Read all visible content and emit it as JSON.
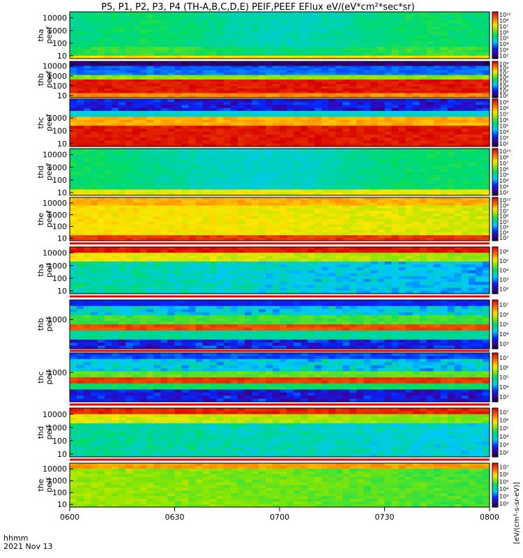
{
  "title": "P5, P1, P2, P3, P4 (TH-A,B,C,D,E) PEIF,PEEF EFlux eV/(eV*cm²*sec*sr)",
  "xaxis": {
    "labels": [
      "0600",
      "0630",
      "0700",
      "0730",
      "0800"
    ],
    "caption_line1": "hhmm",
    "caption_line2": "2021 Nov 13"
  },
  "colorbar_label": "[eV/(cm²-s-sr-eV)]",
  "chart_data": [
    {
      "type": "heatmap",
      "probe": "tha",
      "species": "peef",
      "ylabel": [
        "tha",
        "peef"
      ],
      "yscale": "log",
      "ytick_labels": [
        "10",
        "100",
        "1000",
        "10000"
      ],
      "colorbar_ticks": [
        "10²",
        "10³",
        "10⁴",
        "10⁵",
        "10⁶",
        "10⁷",
        "10⁸",
        "10¹⁰"
      ],
      "pattern": "uniform green-cyan, yellow strip at lowest energy"
    },
    {
      "type": "heatmap",
      "probe": "thb",
      "species": "peef",
      "ylabel": [
        "thb",
        "peef"
      ],
      "yscale": "log",
      "ytick_labels": [
        "10",
        "100",
        "1000",
        "10000"
      ],
      "colorbar_ticks": [
        "10²",
        "10³",
        "10⁴",
        "10⁵",
        "10⁶",
        "10⁷",
        "10⁸",
        "10⁹"
      ],
      "pattern": "red band at low energy, blue-black at high energy"
    },
    {
      "type": "heatmap",
      "probe": "thc",
      "species": "peef",
      "ylabel": [
        "thc",
        "peef"
      ],
      "yscale": "log",
      "ytick_labels": [
        "10",
        "100",
        "1000"
      ],
      "colorbar_ticks": [
        "10²",
        "10³",
        "10⁴",
        "10⁵",
        "10⁶",
        "10⁷",
        "10⁸",
        "10⁹"
      ],
      "pattern": "red band at low energy, blue-black at high energy"
    },
    {
      "type": "heatmap",
      "probe": "thd",
      "species": "peef",
      "ylabel": [
        "thd",
        "peef"
      ],
      "yscale": "log",
      "ytick_labels": [
        "10",
        "100",
        "1000",
        "10000"
      ],
      "colorbar_ticks": [
        "10²",
        "10³",
        "10⁴",
        "10⁵",
        "10⁶",
        "10⁷",
        "10⁸",
        "10¹⁰"
      ],
      "pattern": "uniform green-cyan, yellow at lowest energy"
    },
    {
      "type": "heatmap",
      "probe": "the",
      "species": "peef",
      "ylabel": [
        "the",
        "peef"
      ],
      "yscale": "log",
      "ytick_labels": [
        "10",
        "100",
        "1000",
        "10000"
      ],
      "colorbar_ticks": [
        "10²",
        "10³",
        "10⁴",
        "10⁵",
        "10⁶",
        "10⁷",
        "10⁸",
        "10¹⁰"
      ],
      "pattern": "yellow-orange throughout, red at lowest energy"
    },
    {
      "type": "heatmap",
      "probe": "tha",
      "species": "peif",
      "ylabel": [
        "tha",
        "peif"
      ],
      "yscale": "log",
      "ytick_labels": [
        "10",
        "100",
        "1000",
        "10000"
      ],
      "colorbar_ticks": [
        "10²",
        "10³",
        "10⁴",
        "10⁵",
        "10⁶"
      ],
      "pattern": "red at high energy, green-cyan below"
    },
    {
      "type": "heatmap",
      "probe": "thb",
      "species": "peif",
      "ylabel": [
        "thb",
        "peif"
      ],
      "yscale": "log",
      "ytick_labels": [
        "1000"
      ],
      "colorbar_ticks": [
        "10³",
        "10⁴",
        "10⁵",
        "10⁶",
        "10⁷"
      ],
      "pattern": "red-orange band near center, blue-black at edges"
    },
    {
      "type": "heatmap",
      "probe": "thc",
      "species": "peif",
      "ylabel": [
        "thc",
        "peif"
      ],
      "yscale": "log",
      "ytick_labels": [
        "1000"
      ],
      "colorbar_ticks": [
        "10³",
        "10⁴",
        "10⁵",
        "10⁶",
        "10⁷"
      ],
      "pattern": "red-orange band near center, blue-black at edges"
    },
    {
      "type": "heatmap",
      "probe": "thd",
      "species": "peif",
      "ylabel": [
        "thd",
        "peif"
      ],
      "yscale": "log",
      "ytick_labels": [
        "10",
        "100",
        "1000",
        "10000"
      ],
      "colorbar_ticks": [
        "10²",
        "10³",
        "10⁴",
        "10⁵",
        "10⁶",
        "10⁷"
      ],
      "pattern": "red at top, green-cyan below"
    },
    {
      "type": "heatmap",
      "probe": "the",
      "species": "peif",
      "ylabel": [
        "the",
        "peif"
      ],
      "yscale": "log",
      "ytick_labels": [
        "10",
        "100",
        "1000",
        "10000"
      ],
      "colorbar_ticks": [
        "10²",
        "10³",
        "10⁴",
        "10⁵",
        "10⁶",
        "10⁷"
      ],
      "pattern": "yellow-orange at top, green below"
    }
  ]
}
